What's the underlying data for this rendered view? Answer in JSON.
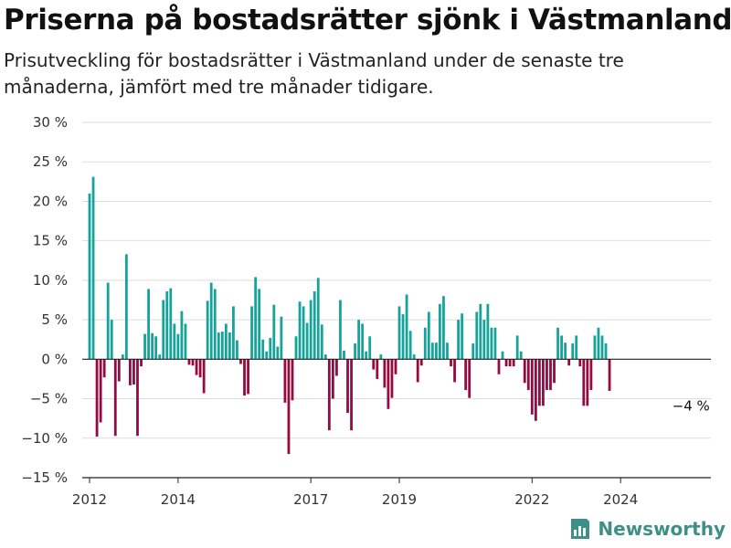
{
  "title": "Priserna på bostadsrätter sjönk i Västmanland",
  "subtitle": "Prisutveckling för bostadsrätter i Västmanland under de senaste tre månaderna, jämfört med tre månader tidigare.",
  "brand": "Newsworthy",
  "colors": {
    "positive": "#17a39a",
    "negative": "#930b3f",
    "axis": "#222222",
    "grid": "#dddddd",
    "brand": "#3f8f89"
  },
  "chart_data": {
    "type": "bar",
    "ylim": [
      -15,
      30
    ],
    "yticks": [
      -15,
      -10,
      -5,
      0,
      5,
      10,
      15,
      20,
      25,
      30
    ],
    "ytick_labels": [
      "−15 %",
      "−10 %",
      "−5 %",
      "0 %",
      "5 %",
      "10 %",
      "15 %",
      "20 %",
      "25 %",
      "30 %"
    ],
    "x_start": "2012-01",
    "x_end": "2025-12",
    "xtick_labels": [
      "2012",
      "2014",
      "2017",
      "2019",
      "2022",
      "2024"
    ],
    "xtick_positions": [
      "2012-01",
      "2014-01",
      "2017-01",
      "2019-01",
      "2022-01",
      "2024-01"
    ],
    "annotation": {
      "text": "−4 %",
      "at": "2025-03"
    },
    "series": [
      {
        "points": [
          [
            "2012-01",
            21.0
          ],
          [
            "2012-02",
            23.1
          ],
          [
            "2012-03",
            -9.8
          ],
          [
            "2012-04",
            -8.0
          ],
          [
            "2012-05",
            -2.3
          ],
          [
            "2012-06",
            9.7
          ],
          [
            "2012-07",
            5.0
          ],
          [
            "2012-08",
            -9.7
          ],
          [
            "2012-09",
            -2.8
          ],
          [
            "2012-10",
            0.6
          ],
          [
            "2012-11",
            13.3
          ],
          [
            "2012-12",
            -3.3
          ],
          [
            "2013-01",
            -3.2
          ],
          [
            "2013-02",
            -9.7
          ],
          [
            "2013-03",
            -0.9
          ],
          [
            "2013-04",
            3.2
          ],
          [
            "2013-05",
            8.9
          ],
          [
            "2013-06",
            3.3
          ],
          [
            "2013-07",
            2.9
          ],
          [
            "2013-08",
            0.6
          ],
          [
            "2013-09",
            7.5
          ],
          [
            "2013-10",
            8.6
          ],
          [
            "2013-11",
            9.0
          ],
          [
            "2013-12",
            4.5
          ],
          [
            "2014-01",
            3.2
          ],
          [
            "2014-02",
            6.1
          ],
          [
            "2014-03",
            4.5
          ],
          [
            "2014-04",
            -0.7
          ],
          [
            "2014-05",
            -0.8
          ],
          [
            "2014-06",
            -2.0
          ],
          [
            "2014-07",
            -2.3
          ],
          [
            "2014-08",
            -4.3
          ],
          [
            "2014-09",
            7.4
          ],
          [
            "2014-10",
            9.7
          ],
          [
            "2014-11",
            8.9
          ],
          [
            "2014-12",
            3.4
          ],
          [
            "2015-01",
            3.5
          ],
          [
            "2015-02",
            4.5
          ],
          [
            "2015-03",
            3.4
          ],
          [
            "2015-04",
            6.7
          ],
          [
            "2015-05",
            2.4
          ],
          [
            "2015-06",
            -0.6
          ],
          [
            "2015-07",
            -4.6
          ],
          [
            "2015-08",
            -4.4
          ],
          [
            "2015-09",
            6.7
          ],
          [
            "2015-10",
            10.4
          ],
          [
            "2015-11",
            8.9
          ],
          [
            "2015-12",
            2.5
          ],
          [
            "2016-01",
            1.0
          ],
          [
            "2016-02",
            2.7
          ],
          [
            "2016-03",
            6.9
          ],
          [
            "2016-04",
            1.6
          ],
          [
            "2016-05",
            5.4
          ],
          [
            "2016-06",
            -5.5
          ],
          [
            "2016-07",
            -12.0
          ],
          [
            "2016-08",
            -5.2
          ],
          [
            "2016-09",
            2.9
          ],
          [
            "2016-10",
            7.3
          ],
          [
            "2016-11",
            6.7
          ],
          [
            "2016-12",
            4.6
          ],
          [
            "2017-01",
            7.5
          ],
          [
            "2017-02",
            8.6
          ],
          [
            "2017-03",
            10.3
          ],
          [
            "2017-04",
            4.4
          ],
          [
            "2017-05",
            0.6
          ],
          [
            "2017-06",
            -9.0
          ],
          [
            "2017-07",
            -5.0
          ],
          [
            "2017-08",
            -2.1
          ],
          [
            "2017-09",
            7.5
          ],
          [
            "2017-10",
            1.1
          ],
          [
            "2017-11",
            -6.8
          ],
          [
            "2017-12",
            -9.0
          ],
          [
            "2018-01",
            2.0
          ],
          [
            "2018-02",
            5.0
          ],
          [
            "2018-03",
            4.5
          ],
          [
            "2018-04",
            1.0
          ],
          [
            "2018-05",
            2.9
          ],
          [
            "2018-06",
            -1.3
          ],
          [
            "2018-07",
            -2.5
          ],
          [
            "2018-08",
            0.6
          ],
          [
            "2018-09",
            -3.6
          ],
          [
            "2018-10",
            -6.3
          ],
          [
            "2018-11",
            -4.9
          ],
          [
            "2018-12",
            -1.9
          ],
          [
            "2019-01",
            6.7
          ],
          [
            "2019-02",
            5.7
          ],
          [
            "2019-03",
            8.2
          ],
          [
            "2019-04",
            3.6
          ],
          [
            "2019-05",
            0.6
          ],
          [
            "2019-06",
            -2.9
          ],
          [
            "2019-07",
            -0.8
          ],
          [
            "2019-08",
            4.0
          ],
          [
            "2019-09",
            6.0
          ],
          [
            "2019-10",
            2.1
          ],
          [
            "2019-11",
            2.1
          ],
          [
            "2019-12",
            7.0
          ],
          [
            "2020-01",
            8.0
          ],
          [
            "2020-02",
            2.1
          ],
          [
            "2020-03",
            -0.9
          ],
          [
            "2020-04",
            -2.9
          ],
          [
            "2020-05",
            5.0
          ],
          [
            "2020-06",
            5.8
          ],
          [
            "2020-07",
            -3.9
          ],
          [
            "2020-08",
            -4.9
          ],
          [
            "2020-09",
            2.0
          ],
          [
            "2020-10",
            6.0
          ],
          [
            "2020-11",
            7.0
          ],
          [
            "2020-12",
            5.0
          ],
          [
            "2021-01",
            7.0
          ],
          [
            "2021-02",
            4.0
          ],
          [
            "2021-03",
            4.0
          ],
          [
            "2021-04",
            -1.9
          ],
          [
            "2021-05",
            1.0
          ],
          [
            "2021-06",
            -0.9
          ],
          [
            "2021-07",
            -0.9
          ],
          [
            "2021-08",
            -0.9
          ],
          [
            "2021-09",
            3.0
          ],
          [
            "2021-10",
            1.0
          ],
          [
            "2021-11",
            -3.0
          ],
          [
            "2021-12",
            -3.9
          ],
          [
            "2022-01",
            -7.0
          ],
          [
            "2022-02",
            -7.8
          ],
          [
            "2022-03",
            -5.9
          ],
          [
            "2022-04",
            -5.9
          ],
          [
            "2022-05",
            -3.9
          ],
          [
            "2022-06",
            -3.9
          ],
          [
            "2022-07",
            -3.0
          ],
          [
            "2022-08",
            4.0
          ],
          [
            "2022-09",
            3.0
          ],
          [
            "2022-10",
            2.1
          ],
          [
            "2022-11",
            -0.8
          ],
          [
            "2022-12",
            2.0
          ],
          [
            "2023-01",
            3.0
          ],
          [
            "2023-02",
            -0.9
          ],
          [
            "2023-03",
            -5.9
          ],
          [
            "2023-04",
            -5.9
          ],
          [
            "2023-05",
            -3.9
          ],
          [
            "2023-06",
            3.0
          ],
          [
            "2023-07",
            4.0
          ],
          [
            "2023-08",
            3.0
          ],
          [
            "2023-09",
            2.0
          ],
          [
            "2023-10",
            -4.0
          ]
        ]
      }
    ]
  }
}
